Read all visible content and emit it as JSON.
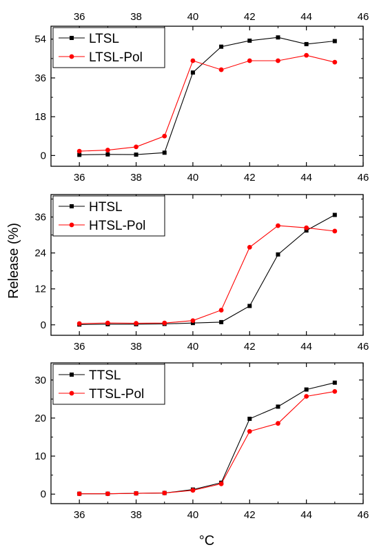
{
  "figure": {
    "ylabel": "Release (%)",
    "xlabel": "°C"
  },
  "chart_data": [
    {
      "type": "line",
      "x": [
        36,
        37,
        38,
        39,
        40,
        41,
        42,
        43,
        44,
        45
      ],
      "xlim": [
        35,
        46
      ],
      "xticks": [
        36,
        38,
        40,
        42,
        44,
        46
      ],
      "ylim": [
        -5,
        60
      ],
      "yticks": [
        0,
        18,
        36,
        54
      ],
      "top_axis_labels": true,
      "legend_position": "top-left",
      "series": [
        {
          "name": "LTSL",
          "color": "#000000",
          "marker": "square",
          "values": [
            0.3,
            0.5,
            0.4,
            1.3,
            38.5,
            50.5,
            53.3,
            54.8,
            51.7,
            53.1
          ]
        },
        {
          "name": "LTSL-Pol",
          "color": "#ff0000",
          "marker": "circle",
          "values": [
            2.0,
            2.5,
            4.0,
            9.0,
            44.0,
            39.8,
            44.0,
            44.0,
            46.5,
            43.3
          ]
        }
      ]
    },
    {
      "type": "line",
      "x": [
        36,
        37,
        38,
        39,
        40,
        41,
        42,
        43,
        44,
        45
      ],
      "xlim": [
        35,
        46
      ],
      "xticks": [
        36,
        38,
        40,
        42,
        44,
        46
      ],
      "ylim": [
        -3.5,
        43.5
      ],
      "yticks": [
        0,
        12,
        24,
        36
      ],
      "top_axis_labels": false,
      "legend_position": "top-left",
      "series": [
        {
          "name": "HTSL",
          "color": "#000000",
          "marker": "square",
          "values": [
            0.1,
            0.2,
            0.2,
            0.3,
            0.6,
            0.9,
            6.3,
            23.5,
            31.5,
            36.7
          ]
        },
        {
          "name": "HTSL-Pol",
          "color": "#ff0000",
          "marker": "circle",
          "values": [
            0.4,
            0.6,
            0.5,
            0.6,
            1.4,
            4.9,
            25.9,
            33.1,
            32.4,
            31.3
          ]
        }
      ]
    },
    {
      "type": "line",
      "x": [
        36,
        37,
        38,
        39,
        40,
        41,
        42,
        43,
        44,
        45
      ],
      "xlim": [
        35,
        46
      ],
      "xticks": [
        36,
        38,
        40,
        42,
        44,
        46
      ],
      "ylim": [
        -2.5,
        34.5
      ],
      "yticks": [
        0,
        10,
        20,
        30
      ],
      "top_axis_labels": false,
      "legend_position": "top-left",
      "series": [
        {
          "name": "TTSL",
          "color": "#000000",
          "marker": "square",
          "values": [
            0.1,
            0.1,
            0.2,
            0.3,
            1.2,
            3.0,
            19.8,
            23.0,
            27.5,
            29.3
          ]
        },
        {
          "name": "TTSL-Pol",
          "color": "#ff0000",
          "marker": "circle",
          "values": [
            0.1,
            0.1,
            0.2,
            0.3,
            1.0,
            2.7,
            16.5,
            18.6,
            25.7,
            27.0
          ]
        }
      ]
    }
  ]
}
